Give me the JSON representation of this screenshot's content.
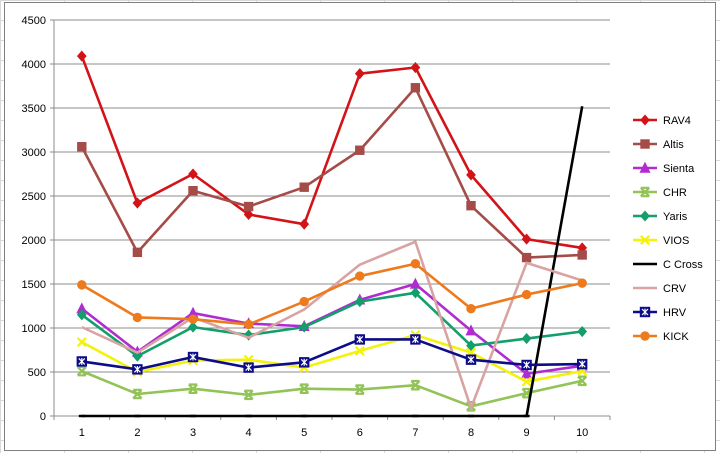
{
  "chart_data": {
    "type": "line",
    "title": "",
    "xlabel": "",
    "ylabel": "",
    "categories": [
      "1",
      "2",
      "3",
      "4",
      "5",
      "6",
      "7",
      "8",
      "9",
      "10"
    ],
    "ylim": [
      0,
      4500
    ],
    "yticks": [
      "0",
      "500",
      "1000",
      "1500",
      "2000",
      "2500",
      "3000",
      "3500",
      "4000",
      "4500"
    ],
    "grid": "horizontal",
    "legend_position": "right",
    "series": [
      {
        "name": "RAV4",
        "color": "#d21418",
        "marker": "diamond",
        "values": [
          4090,
          2420,
          2750,
          2290,
          2180,
          3890,
          3960,
          2740,
          2010,
          1910
        ]
      },
      {
        "name": "Altis",
        "color": "#a54b48",
        "marker": "square",
        "values": [
          3060,
          1860,
          2560,
          2380,
          2600,
          3020,
          3730,
          2390,
          1800,
          1830
        ]
      },
      {
        "name": "Sienta",
        "color": "#b02cd0",
        "marker": "triangle",
        "values": [
          1220,
          730,
          1170,
          1050,
          1020,
          1320,
          1500,
          970,
          480,
          570
        ]
      },
      {
        "name": "CHR",
        "color": "#92c356",
        "marker": "x-box",
        "values": [
          510,
          250,
          310,
          240,
          310,
          300,
          350,
          110,
          260,
          400
        ]
      },
      {
        "name": "Yaris",
        "color": "#139e6b",
        "marker": "diamond",
        "values": [
          1150,
          680,
          1010,
          920,
          1010,
          1300,
          1400,
          800,
          880,
          960
        ]
      },
      {
        "name": "VIOS",
        "color": "#f4f20a",
        "marker": "x",
        "values": [
          840,
          500,
          630,
          640,
          550,
          740,
          920,
          720,
          390,
          510
        ]
      },
      {
        "name": "C Cross",
        "color": "#000000",
        "marker": "dash",
        "values": [
          0,
          0,
          0,
          0,
          0,
          0,
          0,
          0,
          0,
          3520
        ]
      },
      {
        "name": "CRV",
        "color": "#d9a3a2",
        "marker": "none",
        "values": [
          1010,
          720,
          1120,
          890,
          1210,
          1720,
          1980,
          90,
          1740,
          1540
        ]
      },
      {
        "name": "HRV",
        "color": "#0d0d8a",
        "marker": "star-box",
        "values": [
          620,
          530,
          670,
          550,
          610,
          870,
          870,
          640,
          580,
          590
        ]
      },
      {
        "name": "KICK",
        "color": "#ee7a1e",
        "marker": "circle",
        "values": [
          1490,
          1120,
          1100,
          1040,
          1300,
          1590,
          1730,
          1220,
          1380,
          1510
        ]
      }
    ]
  }
}
